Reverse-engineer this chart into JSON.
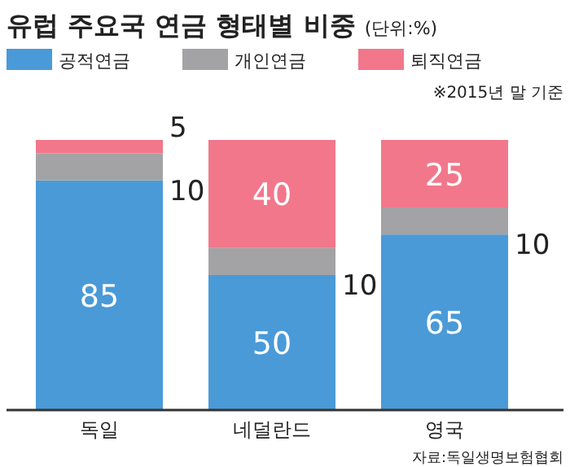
{
  "chart_data": {
    "type": "bar",
    "stacked": true,
    "title": "유럽 주요국 연금 형태별 비중",
    "subtitle": "(단위:%)",
    "categories": [
      "독일",
      "네덜란드",
      "영국"
    ],
    "series": [
      {
        "name": "공적연금",
        "color": "#4a9ad8",
        "values": [
          85,
          50,
          65
        ]
      },
      {
        "name": "개인연금",
        "color": "#a3a3a5",
        "values": [
          10,
          10,
          10
        ]
      },
      {
        "name": "퇴직연금",
        "color": "#f2778b",
        "values": [
          5,
          40,
          25
        ]
      }
    ],
    "data_labels": true,
    "legend": "top left",
    "annotations": [
      "※2015년 말 기준",
      "자료:독일생명보험협회"
    ]
  }
}
